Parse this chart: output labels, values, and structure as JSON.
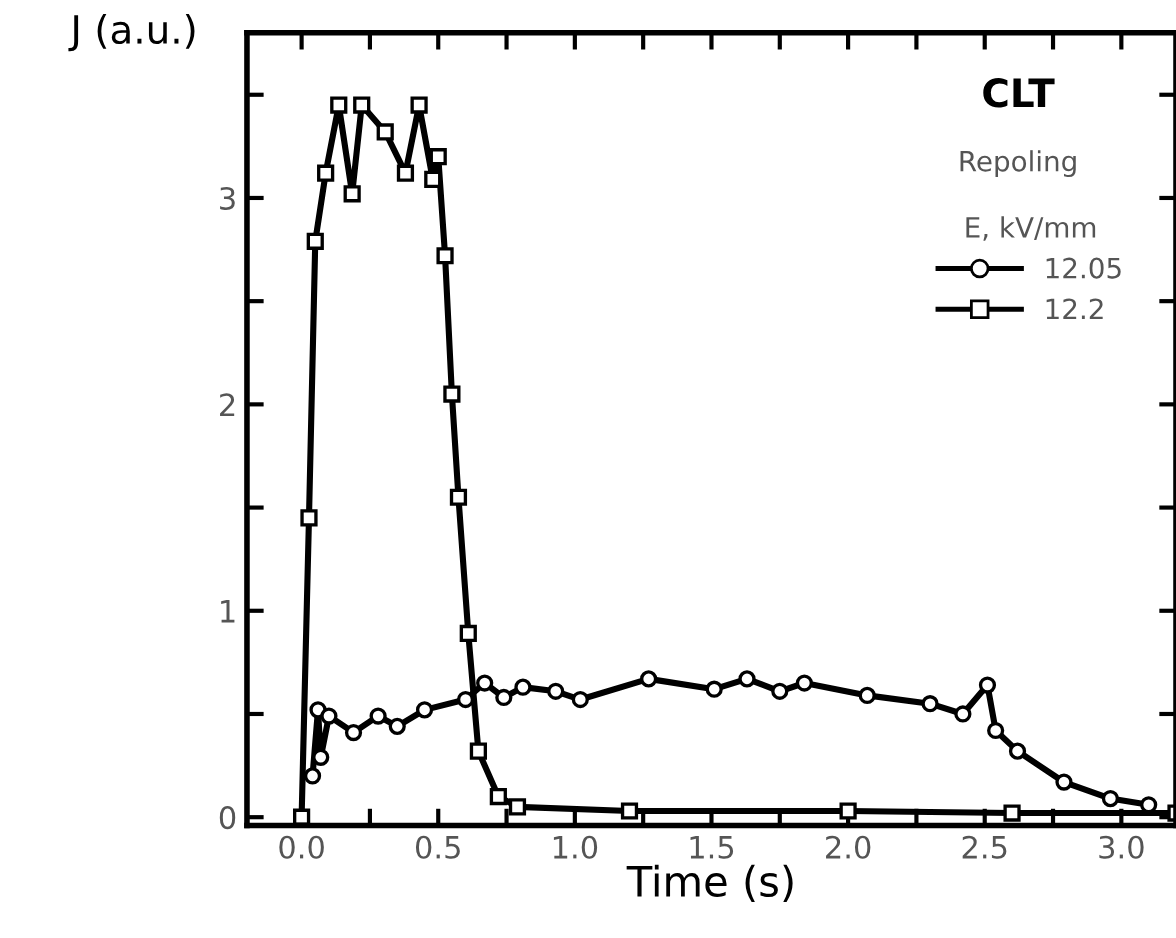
{
  "chart_data": {
    "type": "line",
    "title": "CLT",
    "subtitle": "Repoling",
    "xlabel": "Time (s)",
    "ylabel": "J (a.u.)",
    "legend_title": "E, kV/mm",
    "legend": "top right",
    "grid": false,
    "xlim": [
      -0.2,
      3.2
    ],
    "ylim": [
      -0.04,
      3.8
    ],
    "xticks": [
      {
        "value": 0,
        "label": "0.0"
      },
      {
        "value": 0.25,
        "label": null
      },
      {
        "value": 0.5,
        "label": "0.5"
      },
      {
        "value": 0.75,
        "label": null
      },
      {
        "value": 1,
        "label": "1.0"
      },
      {
        "value": 1.25,
        "label": null
      },
      {
        "value": 1.5,
        "label": "1.5"
      },
      {
        "value": 1.75,
        "label": null
      },
      {
        "value": 2,
        "label": "2.0"
      },
      {
        "value": 2.25,
        "label": null
      },
      {
        "value": 2.5,
        "label": "2.5"
      },
      {
        "value": 2.75,
        "label": null
      },
      {
        "value": 3,
        "label": "3.0"
      }
    ],
    "yticks": [
      0,
      {
        "value": 0.5,
        "label": null
      },
      1,
      {
        "value": 1.5,
        "label": null
      },
      2,
      {
        "value": 2.5,
        "label": null
      },
      3,
      {
        "value": 3.5,
        "label": null
      }
    ],
    "line_style": "solid",
    "series": [
      {
        "name": "12.05",
        "color": "#000000",
        "marker": "circle",
        "x": [
          0.04,
          0.06,
          0.07,
          0.1,
          0.19,
          0.28,
          0.35,
          0.45,
          0.6,
          0.67,
          0.74,
          0.81,
          0.93,
          1.02,
          1.27,
          1.51,
          1.63,
          1.75,
          1.84,
          2.07,
          2.3,
          2.42,
          2.51,
          2.54,
          2.62,
          2.79,
          2.96,
          3.1
        ],
        "values": [
          0.2,
          0.52,
          0.29,
          0.49,
          0.41,
          0.49,
          0.44,
          0.52,
          0.57,
          0.65,
          0.58,
          0.63,
          0.61,
          0.57,
          0.67,
          0.62,
          0.67,
          0.61,
          0.65,
          0.59,
          0.55,
          0.5,
          0.64,
          0.42,
          0.32,
          0.17,
          0.09,
          0.06
        ]
      },
      {
        "name": "12.2",
        "color": "#000000",
        "marker": "square",
        "x": [
          0,
          0.027,
          0.05,
          0.088,
          0.136,
          0.185,
          0.22,
          0.306,
          0.38,
          0.43,
          0.48,
          0.5,
          0.525,
          0.55,
          0.574,
          0.61,
          0.647,
          0.72,
          0.79,
          1.2,
          2.0,
          2.6,
          3.2
        ],
        "values": [
          0,
          1.45,
          2.79,
          3.12,
          3.45,
          3.02,
          3.45,
          3.32,
          3.12,
          3.45,
          3.09,
          3.2,
          2.72,
          2.05,
          1.55,
          0.89,
          0.32,
          0.1,
          0.05,
          0.03,
          0.03,
          0.02,
          0.02
        ]
      }
    ]
  }
}
